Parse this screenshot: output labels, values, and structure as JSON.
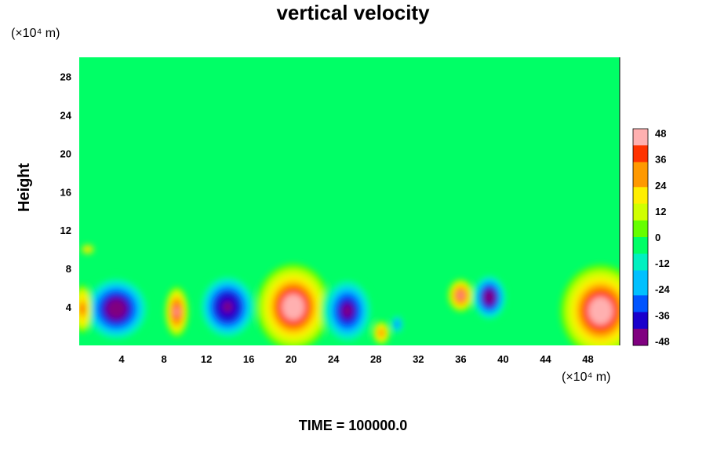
{
  "chart_data": {
    "type": "heatmap",
    "title": "vertical velocity",
    "ylabel": "Height",
    "xlabel": "",
    "x_unit": "(×10⁴ m)",
    "y_unit": "(×10⁴ m)",
    "footer": "TIME = 100000.0",
    "xlim": [
      0,
      51
    ],
    "ylim": [
      0,
      30
    ],
    "x_ticks": [
      "4",
      "8",
      "12",
      "16",
      "20",
      "24",
      "28",
      "32",
      "36",
      "40",
      "44",
      "48"
    ],
    "y_ticks": [
      "4",
      "8",
      "12",
      "16",
      "20",
      "24",
      "28"
    ],
    "colorbar": {
      "min": -50,
      "max": 50,
      "ticks": [
        "48",
        "36",
        "24",
        "12",
        "0",
        "-12",
        "-24",
        "-36",
        "-48"
      ],
      "colors": [
        "#800080",
        "#1a00cc",
        "#0055ff",
        "#00c0ff",
        "#00f0c0",
        "#00ff66",
        "#66ff00",
        "#d0ff00",
        "#ffee00",
        "#ff9900",
        "#ff3300",
        "#ffb0b0"
      ]
    },
    "background_value": -6,
    "features": [
      {
        "x": 3.5,
        "y": 3.8,
        "rx": 3.2,
        "ry": 3.5,
        "value": -50
      },
      {
        "x": 0.3,
        "y": 3.8,
        "rx": 0.9,
        "ry": 2.5,
        "value": 36
      },
      {
        "x": 9.2,
        "y": 3.5,
        "rx": 1.1,
        "ry": 2.6,
        "value": 44
      },
      {
        "x": 14.0,
        "y": 4.0,
        "rx": 2.8,
        "ry": 3.5,
        "value": -48
      },
      {
        "x": 20.2,
        "y": 4.0,
        "rx": 3.5,
        "ry": 4.5,
        "value": 50
      },
      {
        "x": 25.3,
        "y": 3.6,
        "rx": 2.5,
        "ry": 3.6,
        "value": -42
      },
      {
        "x": 28.5,
        "y": 1.3,
        "rx": 0.8,
        "ry": 1.2,
        "value": 36
      },
      {
        "x": 36.0,
        "y": 5.2,
        "rx": 1.2,
        "ry": 1.7,
        "value": 46
      },
      {
        "x": 38.7,
        "y": 5.0,
        "rx": 1.7,
        "ry": 2.5,
        "value": -50
      },
      {
        "x": 49.2,
        "y": 3.6,
        "rx": 3.8,
        "ry": 4.8,
        "value": 50
      },
      {
        "x": 0.8,
        "y": 10.0,
        "rx": 0.6,
        "ry": 0.5,
        "value": 30
      },
      {
        "x": 30.0,
        "y": 2.2,
        "rx": 0.6,
        "ry": 1.0,
        "value": -30
      }
    ]
  }
}
